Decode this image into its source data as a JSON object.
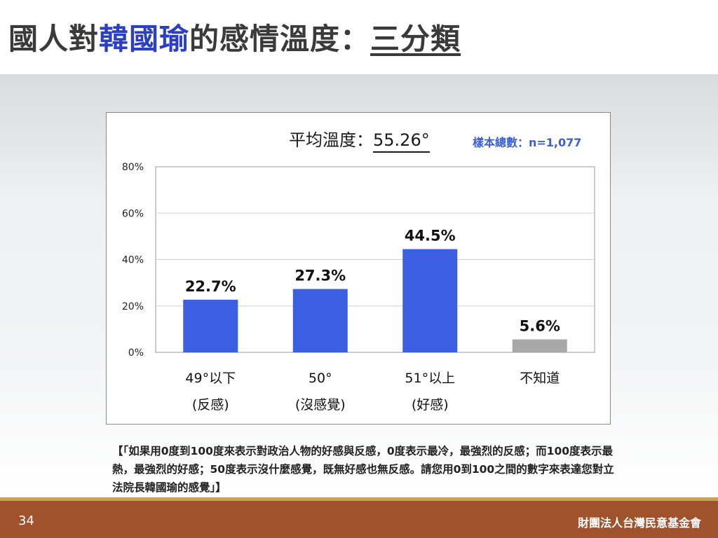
{
  "slide": {
    "title_prefix": "國人對",
    "title_highlight": "韓國瑜",
    "title_middle": "的感情溫度：",
    "title_underlined": "三分類",
    "page_number": "34",
    "organization": "財團法人台灣民意基金會",
    "note": "【「如果用0度到100度來表示對政治人物的好感與反感，0度表示最冷，最強烈的反感；而100度表示最熱，最強烈的好感；50度表示沒什麼感覺，既無好感也無反感。請您用0到100之間的數字來表達您對立法院長韓國瑜的感覺」】",
    "colors": {
      "title_highlight": "#2b3fc4",
      "footer": "#a0522d",
      "footer_stripe": "#c9a35a"
    }
  },
  "chart_data": {
    "type": "bar",
    "average_label": "平均溫度：",
    "average_value": "55.26°",
    "sample_label": "樣本總數：n=1,077",
    "categories": [
      {
        "line1": "49°以下",
        "line2": "(反感)"
      },
      {
        "line1": "50°",
        "line2": "(沒感覺)"
      },
      {
        "line1": "51°以上",
        "line2": "(好感)"
      },
      {
        "line1": "不知道",
        "line2": ""
      }
    ],
    "values": [
      22.7,
      27.3,
      44.5,
      5.6
    ],
    "value_labels": [
      "22.7%",
      "27.3%",
      "44.5%",
      "5.6%"
    ],
    "bar_colors": [
      "#3b5fe0",
      "#3b5fe0",
      "#3b5fe0",
      "#a8a8a8"
    ],
    "y_ticks": [
      {
        "value": 0,
        "label": "0%"
      },
      {
        "value": 20,
        "label": "20%"
      },
      {
        "value": 40,
        "label": "40%"
      },
      {
        "value": 60,
        "label": "60%"
      },
      {
        "value": 80,
        "label": "80%"
      }
    ],
    "ylim": [
      0,
      80
    ],
    "grid": true,
    "legend": "none"
  }
}
